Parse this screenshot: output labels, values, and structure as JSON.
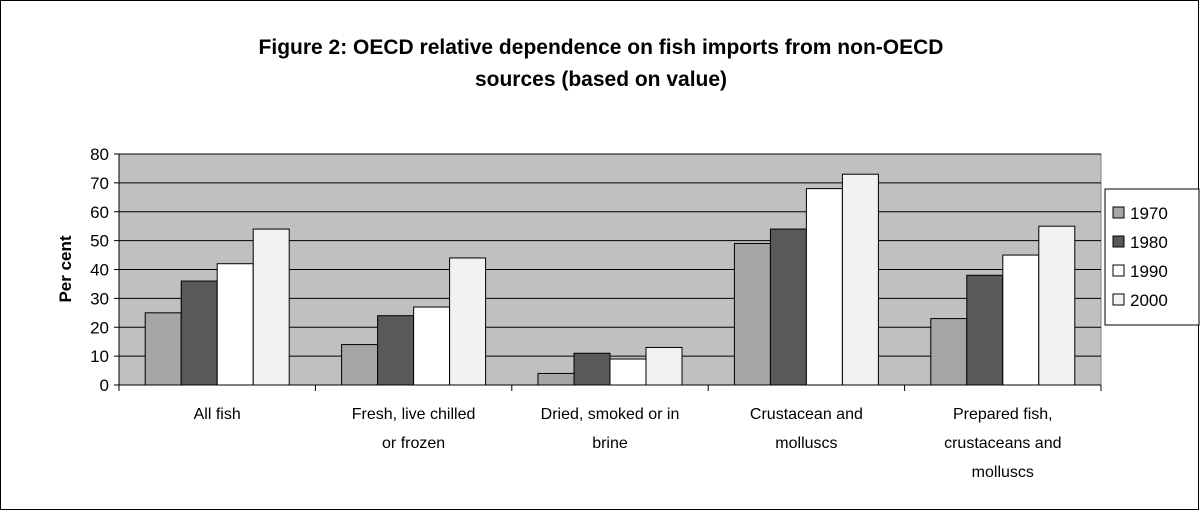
{
  "chart_data": {
    "type": "bar",
    "title_lines": [
      "Figure 2: OECD relative dependence on fish imports from non-OECD",
      "sources (based on value)"
    ],
    "xlabel": "",
    "ylabel": "Per cent",
    "ylim": [
      0,
      80
    ],
    "ytick_step": 10,
    "grid": true,
    "legend_position": "right",
    "plot_background": "#c0c0c0",
    "categories": [
      [
        "All fish"
      ],
      [
        "Fresh, live chilled",
        "or frozen"
      ],
      [
        "Dried, smoked or in",
        "brine"
      ],
      [
        "Crustacean and",
        "molluscs"
      ],
      [
        "Prepared fish,",
        "crustaceans and",
        "molluscs"
      ]
    ],
    "series": [
      {
        "name": "1970",
        "color": "#a6a6a6",
        "values": [
          25,
          14,
          4,
          49,
          23
        ]
      },
      {
        "name": "1980",
        "color": "#595959",
        "values": [
          36,
          24,
          11,
          54,
          38
        ]
      },
      {
        "name": "1990",
        "color": "#ffffff",
        "values": [
          42,
          27,
          9,
          68,
          45
        ]
      },
      {
        "name": "2000",
        "color": "#f2f2f2",
        "values": [
          54,
          44,
          13,
          73,
          55
        ]
      }
    ]
  }
}
